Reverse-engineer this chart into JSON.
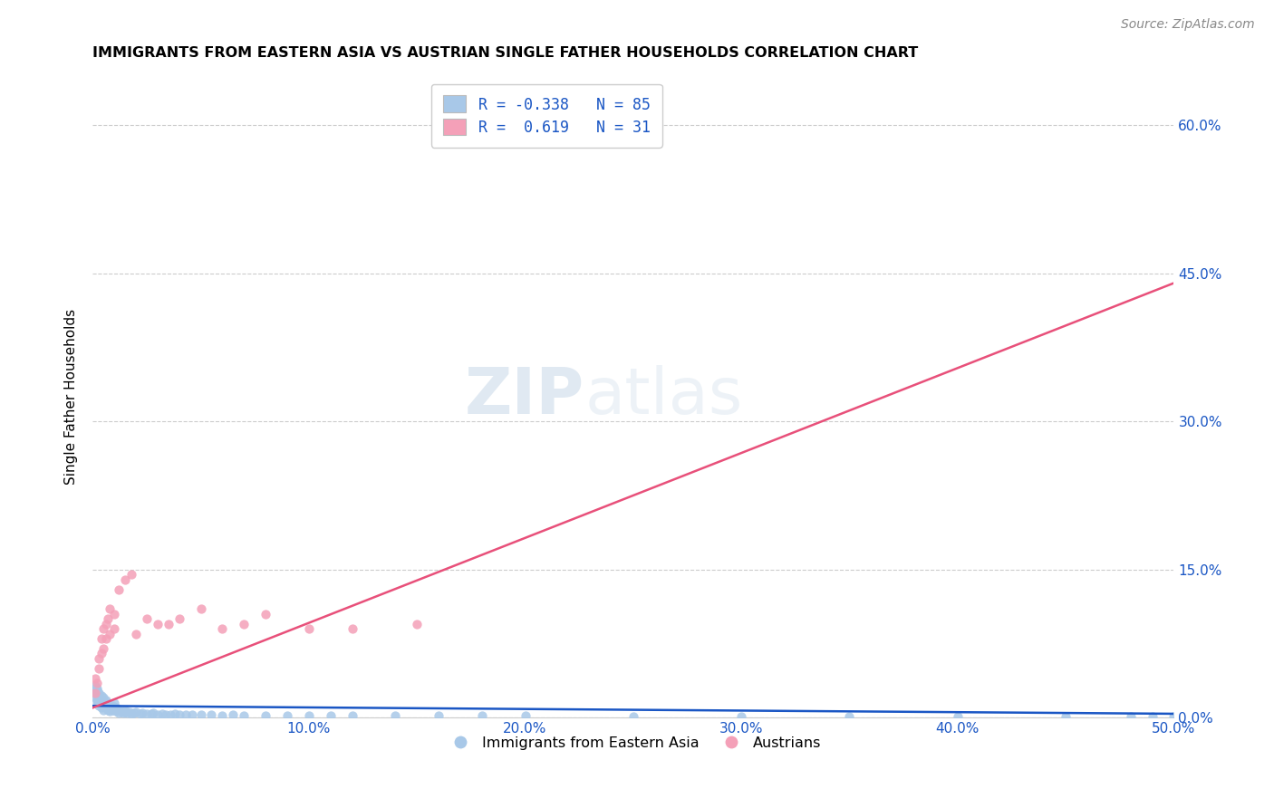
{
  "title": "IMMIGRANTS FROM EASTERN ASIA VS AUSTRIAN SINGLE FATHER HOUSEHOLDS CORRELATION CHART",
  "source": "Source: ZipAtlas.com",
  "ylabel": "Single Father Households",
  "xlim": [
    0.0,
    0.5
  ],
  "ylim": [
    0.0,
    0.65
  ],
  "x_ticks": [
    0.0,
    0.1,
    0.2,
    0.3,
    0.4,
    0.5
  ],
  "y_ticks": [
    0.0,
    0.15,
    0.3,
    0.45,
    0.6
  ],
  "legend_labels": [
    "Immigrants from Eastern Asia",
    "Austrians"
  ],
  "watermark_zip": "ZIP",
  "watermark_atlas": "atlas",
  "blue_color": "#a8c8e8",
  "blue_line_color": "#1a56c4",
  "pink_color": "#f4a0b8",
  "pink_line_color": "#e8507a",
  "blue_scatter_x": [
    0.001,
    0.001,
    0.001,
    0.001,
    0.002,
    0.002,
    0.002,
    0.002,
    0.002,
    0.002,
    0.003,
    0.003,
    0.003,
    0.003,
    0.003,
    0.004,
    0.004,
    0.004,
    0.004,
    0.005,
    0.005,
    0.005,
    0.005,
    0.006,
    0.006,
    0.006,
    0.007,
    0.007,
    0.007,
    0.008,
    0.008,
    0.008,
    0.009,
    0.009,
    0.01,
    0.01,
    0.01,
    0.011,
    0.011,
    0.012,
    0.012,
    0.013,
    0.014,
    0.015,
    0.015,
    0.016,
    0.017,
    0.018,
    0.019,
    0.02,
    0.022,
    0.023,
    0.025,
    0.027,
    0.028,
    0.03,
    0.032,
    0.034,
    0.036,
    0.038,
    0.04,
    0.043,
    0.046,
    0.05,
    0.055,
    0.06,
    0.065,
    0.07,
    0.08,
    0.09,
    0.1,
    0.11,
    0.12,
    0.14,
    0.16,
    0.18,
    0.2,
    0.25,
    0.3,
    0.35,
    0.4,
    0.45,
    0.48,
    0.49,
    0.5
  ],
  "blue_scatter_y": [
    0.03,
    0.025,
    0.02,
    0.032,
    0.022,
    0.028,
    0.018,
    0.025,
    0.015,
    0.03,
    0.02,
    0.025,
    0.015,
    0.022,
    0.012,
    0.018,
    0.022,
    0.015,
    0.01,
    0.02,
    0.015,
    0.012,
    0.008,
    0.015,
    0.01,
    0.018,
    0.012,
    0.008,
    0.015,
    0.01,
    0.012,
    0.007,
    0.008,
    0.012,
    0.01,
    0.008,
    0.015,
    0.007,
    0.01,
    0.008,
    0.005,
    0.007,
    0.005,
    0.006,
    0.008,
    0.005,
    0.006,
    0.004,
    0.005,
    0.006,
    0.004,
    0.005,
    0.004,
    0.004,
    0.005,
    0.003,
    0.004,
    0.003,
    0.003,
    0.004,
    0.003,
    0.003,
    0.003,
    0.003,
    0.003,
    0.002,
    0.003,
    0.002,
    0.002,
    0.002,
    0.002,
    0.002,
    0.002,
    0.002,
    0.002,
    0.002,
    0.002,
    0.001,
    0.001,
    0.001,
    0.001,
    0.001,
    0.001,
    0.001,
    0.001
  ],
  "pink_scatter_x": [
    0.001,
    0.001,
    0.002,
    0.003,
    0.003,
    0.004,
    0.004,
    0.005,
    0.005,
    0.006,
    0.006,
    0.007,
    0.008,
    0.008,
    0.01,
    0.01,
    0.012,
    0.015,
    0.018,
    0.02,
    0.025,
    0.03,
    0.035,
    0.04,
    0.05,
    0.06,
    0.07,
    0.08,
    0.1,
    0.12,
    0.15
  ],
  "pink_scatter_y": [
    0.025,
    0.04,
    0.035,
    0.05,
    0.06,
    0.065,
    0.08,
    0.07,
    0.09,
    0.08,
    0.095,
    0.1,
    0.085,
    0.11,
    0.09,
    0.105,
    0.13,
    0.14,
    0.145,
    0.085,
    0.1,
    0.095,
    0.095,
    0.1,
    0.11,
    0.09,
    0.095,
    0.105,
    0.09,
    0.09,
    0.095
  ],
  "blue_trend_x": [
    0.0,
    0.5
  ],
  "blue_trend_y": [
    0.012,
    0.004
  ],
  "pink_trend_x": [
    0.0,
    0.5
  ],
  "pink_trend_y": [
    0.01,
    0.44
  ]
}
